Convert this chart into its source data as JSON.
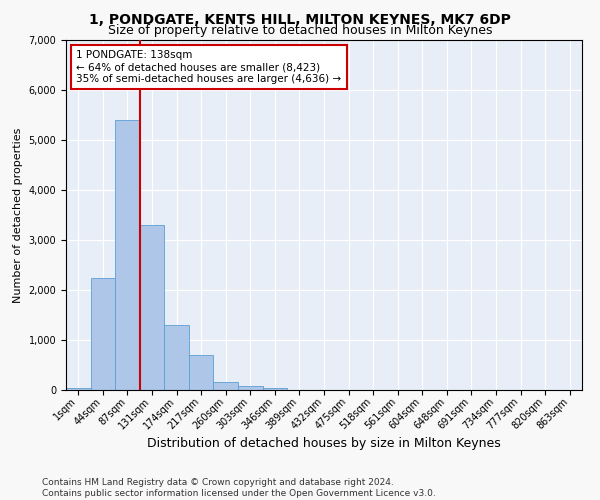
{
  "title1": "1, PONDGATE, KENTS HILL, MILTON KEYNES, MK7 6DP",
  "title2": "Size of property relative to detached houses in Milton Keynes",
  "xlabel": "Distribution of detached houses by size in Milton Keynes",
  "ylabel": "Number of detached properties",
  "categories": [
    "1sqm",
    "44sqm",
    "87sqm",
    "131sqm",
    "174sqm",
    "217sqm",
    "260sqm",
    "303sqm",
    "346sqm",
    "389sqm",
    "432sqm",
    "475sqm",
    "518sqm",
    "561sqm",
    "604sqm",
    "648sqm",
    "691sqm",
    "734sqm",
    "777sqm",
    "820sqm",
    "863sqm"
  ],
  "values": [
    50,
    2250,
    5400,
    3300,
    1300,
    700,
    160,
    75,
    50,
    0,
    0,
    0,
    0,
    0,
    0,
    0,
    0,
    0,
    0,
    0,
    0
  ],
  "bar_color": "#aec6e8",
  "bar_edge_color": "#5a9fd4",
  "vline_x": 2.5,
  "vline_color": "#cc0000",
  "ylim": [
    0,
    7000
  ],
  "yticks": [
    0,
    1000,
    2000,
    3000,
    4000,
    5000,
    6000,
    7000
  ],
  "annotation_text": "1 PONDGATE: 138sqm\n← 64% of detached houses are smaller (8,423)\n35% of semi-detached houses are larger (4,636) →",
  "annotation_box_color": "#ffffff",
  "annotation_box_edge": "#cc0000",
  "footer": "Contains HM Land Registry data © Crown copyright and database right 2024.\nContains public sector information licensed under the Open Government Licence v3.0.",
  "bg_color": "#e8eef7",
  "grid_color": "#ffffff",
  "title1_fontsize": 10,
  "title2_fontsize": 9,
  "xlabel_fontsize": 9,
  "ylabel_fontsize": 8,
  "tick_fontsize": 7,
  "annotation_fontsize": 7.5,
  "footer_fontsize": 6.5
}
